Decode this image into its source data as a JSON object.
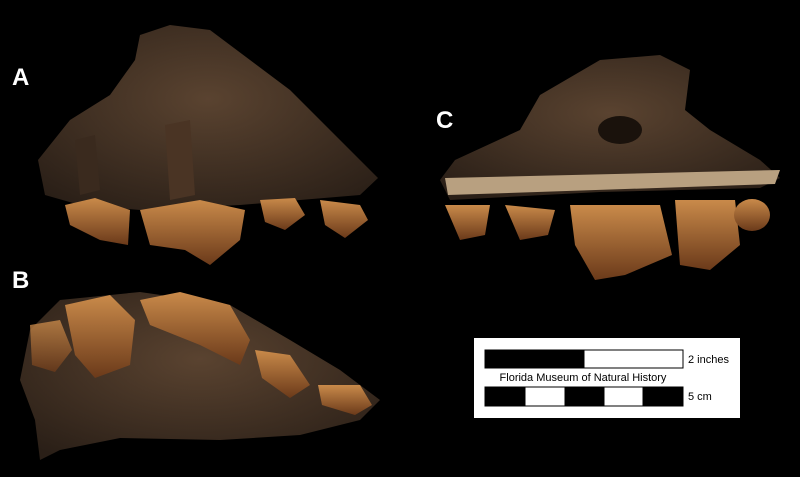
{
  "panels": [
    {
      "label": "A"
    },
    {
      "label": "B"
    },
    {
      "label": "C"
    }
  ],
  "scale_bar": {
    "top_label": "2 inches",
    "caption": "Florida Museum of Natural History",
    "bottom_label": "5 cm"
  }
}
